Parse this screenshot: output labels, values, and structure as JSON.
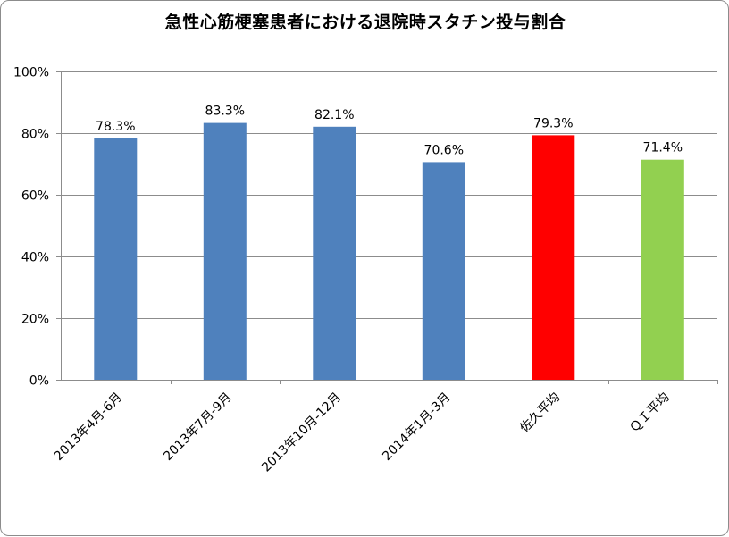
{
  "chart_data": {
    "type": "bar",
    "title": "急性心筋梗塞患者における退院時スタチン投与割合",
    "categories": [
      "2013年4月-6月",
      "2013年7月-9月",
      "2013年10月-12月",
      "2014年1月-3月",
      "佐久平均",
      "ＱＩ平均"
    ],
    "values": [
      78.3,
      83.3,
      82.1,
      70.6,
      79.3,
      71.4
    ],
    "data_labels": [
      "78.3%",
      "83.3%",
      "82.1%",
      "70.6%",
      "79.3%",
      "71.4%"
    ],
    "bar_colors": [
      "#4f81bd",
      "#4f81bd",
      "#4f81bd",
      "#4f81bd",
      "#ff0000",
      "#92d050"
    ],
    "ylim": [
      0,
      100
    ],
    "yticks": [
      0,
      20,
      40,
      60,
      80,
      100
    ],
    "ytick_labels": [
      "0%",
      "20%",
      "40%",
      "60%",
      "80%",
      "100%"
    ],
    "grid": true,
    "legend": "none"
  }
}
